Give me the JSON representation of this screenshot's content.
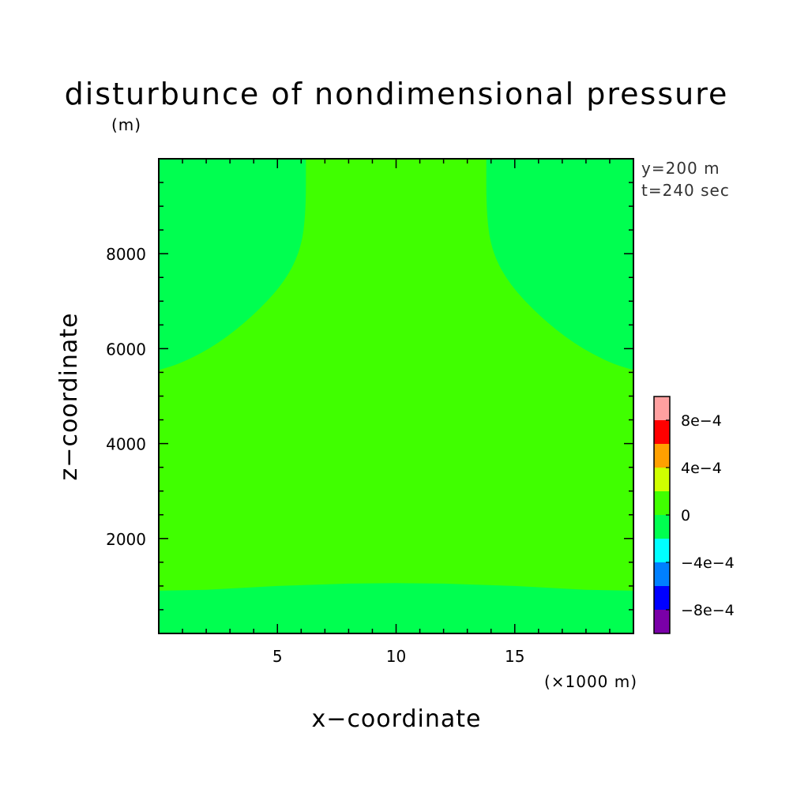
{
  "chart_data": {
    "type": "heatmap",
    "title": "disturbunce of nondimensional pressure",
    "unit_label": "(m)",
    "xlabel": "x−coordinate",
    "ylabel": "z−coordinate",
    "x_unit_note": "(×1000 m)",
    "info": [
      "y=200 m",
      "t=240 sec"
    ],
    "xlim": [
      0,
      20
    ],
    "ylim": [
      0,
      10000
    ],
    "x_ticks": [
      5,
      10,
      15
    ],
    "x_tick_labels": [
      "5",
      "10",
      "15"
    ],
    "y_ticks": [
      2000,
      4000,
      6000,
      8000
    ],
    "y_tick_labels": [
      "2000",
      "4000",
      "6000",
      "8000"
    ],
    "grid": false,
    "colorbar": {
      "levels": [
        -0.001,
        -0.0008,
        -0.0006,
        -0.0004,
        -0.0002,
        0,
        0.0002,
        0.0004,
        0.0006,
        0.0008,
        0.001
      ],
      "colors": [
        "#7a00a8",
        "#0000ff",
        "#0080ff",
        "#00ffff",
        "#00ff50",
        "#40ff00",
        "#d0ff00",
        "#ffa000",
        "#ff0000",
        "#ffa0a0"
      ],
      "tick_values": [
        -0.0008,
        -0.0004,
        0,
        0.0004,
        0.0008
      ],
      "tick_labels": [
        "−8e−4",
        "−4e−4",
        "0",
        "4e−4",
        "8e−4"
      ]
    },
    "field": {
      "background_level": "0 to 2e-4",
      "background_color": "#40ff00",
      "regions_level": "-2e-4 to 0",
      "regions_color": "#00ff50",
      "regions": [
        {
          "name": "bottom-band",
          "boundary": [
            [
              0,
              900
            ],
            [
              2,
              920
            ],
            [
              5,
              1000
            ],
            [
              8,
              1050
            ],
            [
              10,
              1060
            ],
            [
              12,
              1050
            ],
            [
              15,
              1000
            ],
            [
              18,
              920
            ],
            [
              20,
              900
            ]
          ]
        },
        {
          "name": "top-left-lobe",
          "boundary": [
            [
              0,
              5550
            ],
            [
              1,
              5700
            ],
            [
              2.5,
              6100
            ],
            [
              4,
              6700
            ],
            [
              5.3,
              7400
            ],
            [
              6,
              8100
            ],
            [
              6.2,
              8900
            ],
            [
              6.2,
              10000
            ]
          ]
        },
        {
          "name": "top-right-lobe",
          "boundary": [
            [
              20,
              5550
            ],
            [
              19,
              5700
            ],
            [
              17.5,
              6100
            ],
            [
              16,
              6700
            ],
            [
              14.7,
              7400
            ],
            [
              14,
              8100
            ],
            [
              13.8,
              8900
            ],
            [
              13.8,
              10000
            ]
          ]
        }
      ]
    }
  }
}
